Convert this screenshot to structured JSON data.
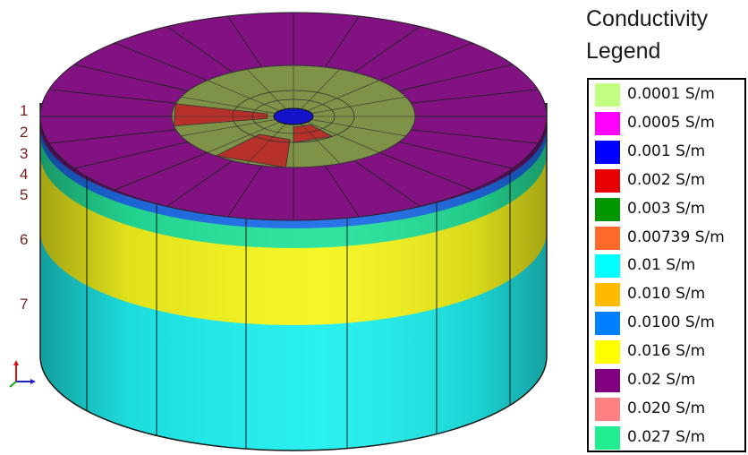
{
  "layer_numbers": [
    "1",
    "2",
    "3",
    "4",
    "5",
    "6",
    "7"
  ],
  "legend": {
    "title_line1": "Conductivity",
    "title_line2": "Legend",
    "entries": [
      {
        "label": "0.0001 S/m",
        "color": "#c3ff80"
      },
      {
        "label": "0.0005 S/m",
        "color": "#ff00ff"
      },
      {
        "label": "0.001 S/m",
        "color": "#0000ff"
      },
      {
        "label": "0.002 S/m",
        "color": "#e60000"
      },
      {
        "label": "0.003 S/m",
        "color": "#009600"
      },
      {
        "label": "0.00739 S/m",
        "color": "#ff6a2a"
      },
      {
        "label": "0.01 S/m",
        "color": "#00ffff"
      },
      {
        "label": "0.010 S/m",
        "color": "#ffbb00"
      },
      {
        "label": "0.0100 S/m",
        "color": "#0080ff"
      },
      {
        "label": "0.016 S/m",
        "color": "#ffff00"
      },
      {
        "label": "0.02 S/m",
        "color": "#800080"
      },
      {
        "label": "0.020 S/m",
        "color": "#ff8080"
      },
      {
        "label": "0.027 S/m",
        "color": "#20ee90"
      }
    ]
  },
  "colors": {
    "top_surface": "#821282",
    "inner_ring": "#7d9a45",
    "center": "#1414c8",
    "red_sector": "#b5312a",
    "layer_purple": "#6a1070",
    "layer_blue": "#1e6ee8",
    "layer_green": "#26e39a",
    "layer_yellow": "#f5f51e",
    "layer_cyan": "#1fefef"
  },
  "axes_icon": "xyz-axes-icon"
}
